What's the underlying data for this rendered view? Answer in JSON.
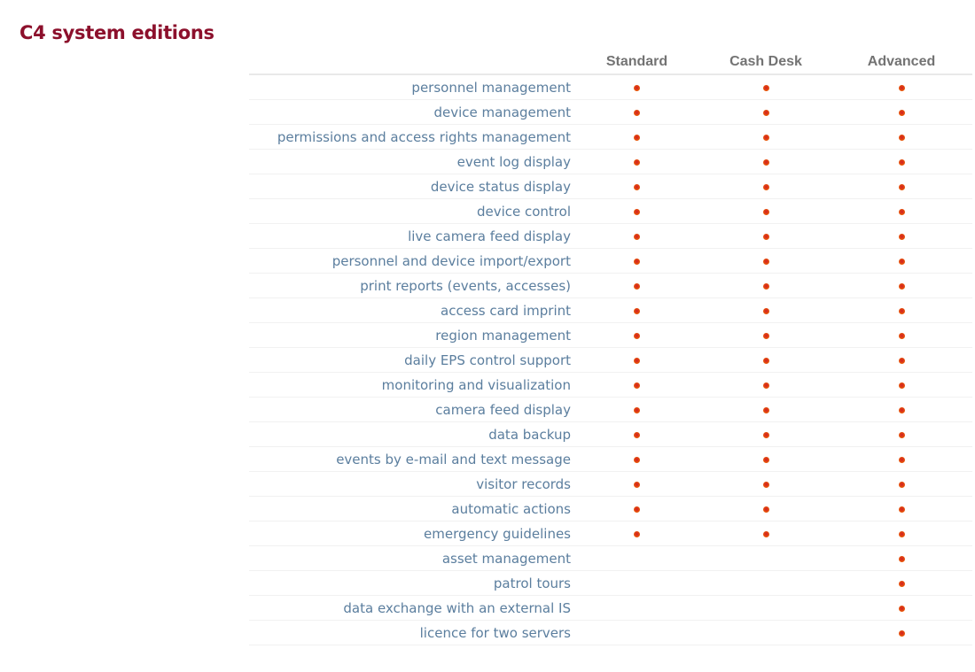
{
  "page": {
    "title": "C4 system editions"
  },
  "colors": {
    "title_color": "#8c102c",
    "row_label_color": "#5b7e9e",
    "column_header_color": "#737373",
    "header_border_color": "#e9e9e9",
    "row_border_color": "#f1f1f1",
    "dot_center_color": "#d62a1f",
    "dot_outer_color": "#ee6602"
  },
  "table": {
    "columns": [
      "Standard",
      "Cash Desk",
      "Advanced"
    ],
    "rows": [
      {
        "label": "personnel management",
        "availability": [
          true,
          true,
          true
        ]
      },
      {
        "label": "device management",
        "availability": [
          true,
          true,
          true
        ]
      },
      {
        "label": "permissions and access rights management",
        "availability": [
          true,
          true,
          true
        ]
      },
      {
        "label": "event log display",
        "availability": [
          true,
          true,
          true
        ]
      },
      {
        "label": "device status display",
        "availability": [
          true,
          true,
          true
        ]
      },
      {
        "label": "device control",
        "availability": [
          true,
          true,
          true
        ]
      },
      {
        "label": "live camera feed display",
        "availability": [
          true,
          true,
          true
        ]
      },
      {
        "label": "personnel and device import/export",
        "availability": [
          true,
          true,
          true
        ]
      },
      {
        "label": "print reports (events, accesses)",
        "availability": [
          true,
          true,
          true
        ]
      },
      {
        "label": "access card imprint",
        "availability": [
          true,
          true,
          true
        ]
      },
      {
        "label": "region management",
        "availability": [
          true,
          true,
          true
        ]
      },
      {
        "label": "daily EPS control support",
        "availability": [
          true,
          true,
          true
        ]
      },
      {
        "label": "monitoring and visualization",
        "availability": [
          true,
          true,
          true
        ]
      },
      {
        "label": "camera feed display",
        "availability": [
          true,
          true,
          true
        ]
      },
      {
        "label": "data backup",
        "availability": [
          true,
          true,
          true
        ]
      },
      {
        "label": "events by e-mail and text message",
        "availability": [
          true,
          true,
          true
        ]
      },
      {
        "label": "visitor records",
        "availability": [
          true,
          true,
          true
        ]
      },
      {
        "label": "automatic actions",
        "availability": [
          true,
          true,
          true
        ]
      },
      {
        "label": "emergency guidelines",
        "availability": [
          true,
          true,
          true
        ]
      },
      {
        "label": "asset management",
        "availability": [
          false,
          false,
          true
        ]
      },
      {
        "label": "patrol tours",
        "availability": [
          false,
          false,
          true
        ]
      },
      {
        "label": "data exchange with an external IS",
        "availability": [
          false,
          false,
          true
        ]
      },
      {
        "label": "licence for two servers",
        "availability": [
          false,
          false,
          true
        ]
      }
    ]
  }
}
